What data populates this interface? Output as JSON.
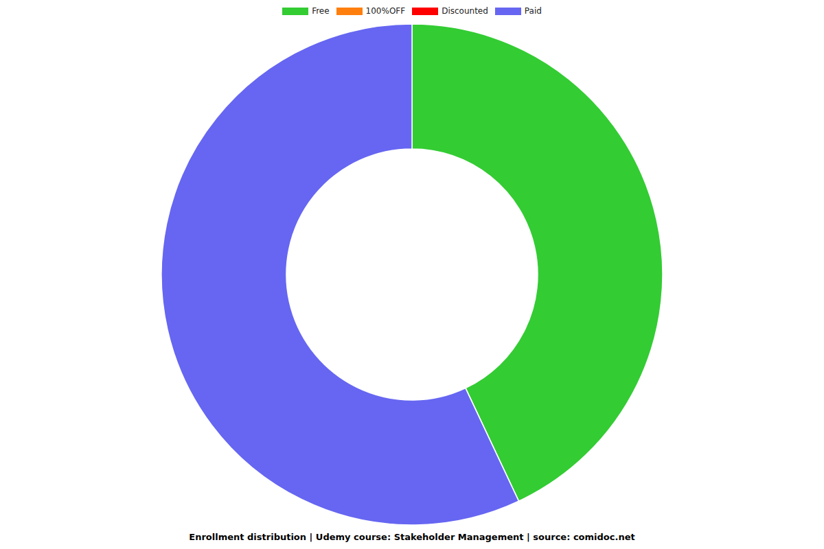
{
  "chart_data": {
    "type": "donut",
    "title": "Enrollment distribution | Udemy course: Stakeholder Management | source: comidoc.net",
    "categories": [
      "Free",
      "100%OFF",
      "Discounted",
      "Paid"
    ],
    "values": [
      43,
      0,
      0,
      57
    ],
    "colors": [
      "#33cc33",
      "#ff7f0e",
      "#ff0000",
      "#6666f2"
    ],
    "legend": "top"
  }
}
